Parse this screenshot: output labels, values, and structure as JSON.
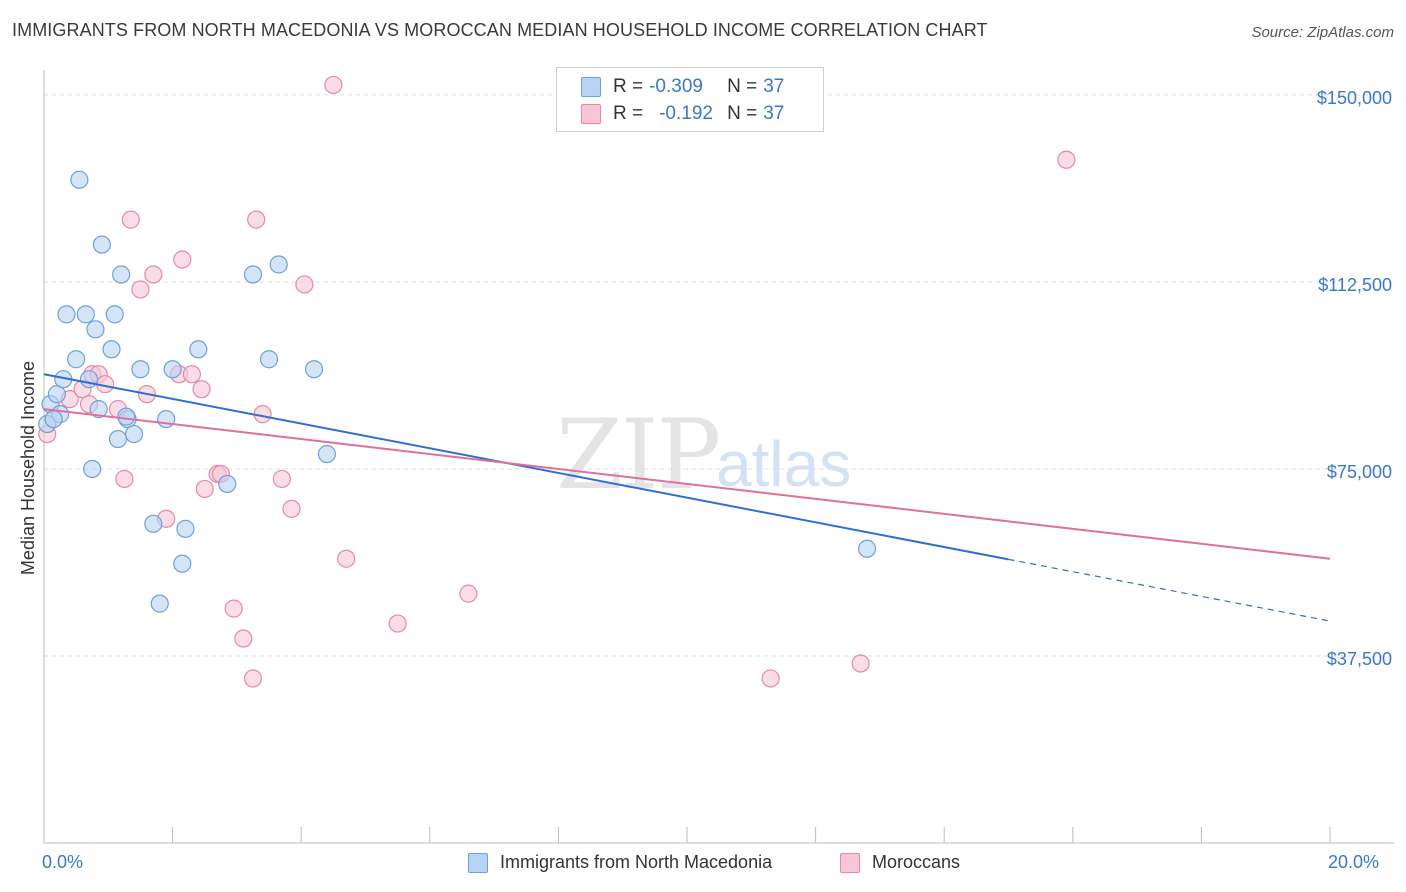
{
  "title": "IMMIGRANTS FROM NORTH MACEDONIA VS MOROCCAN MEDIAN HOUSEHOLD INCOME CORRELATION CHART",
  "source": "Source: ZipAtlas.com",
  "watermark": {
    "zip": "ZIP",
    "atlas": "atlas"
  },
  "legend_top": {
    "rows": [
      {
        "r_label": "R =",
        "r_value": "-0.309",
        "n_label": "N =",
        "n_value": "37"
      },
      {
        "r_label": "R =",
        "r_value": "-0.192",
        "n_label": "N =",
        "n_value": "37"
      }
    ]
  },
  "colors": {
    "blue_fill": "#b8d3f3",
    "blue_stroke": "#6fa0dc",
    "blue_line": "#2f6fd0",
    "pink_fill": "#f8c6d6",
    "pink_stroke": "#e58aa9",
    "pink_line": "#e0709a",
    "tick_text": "#3b78c9",
    "grid": "#dcdcdc"
  },
  "chart_data": {
    "type": "scatter",
    "title": "IMMIGRANTS FROM NORTH MACEDONIA VS MOROCCAN MEDIAN HOUSEHOLD INCOME CORRELATION CHART",
    "xlabel": "",
    "ylabel": "Median Household Income",
    "xlim": [
      0,
      20
    ],
    "ylim": [
      0,
      155000
    ],
    "x_tick_labels": [
      "0.0%",
      "20.0%"
    ],
    "y_ticks": [
      37500,
      75000,
      112500,
      150000
    ],
    "y_tick_labels": [
      "$37,500",
      "$75,000",
      "$112,500",
      "$150,000"
    ],
    "series": [
      {
        "name": "Immigrants from North Macedonia",
        "points": [
          {
            "x": 0.05,
            "y": 84000
          },
          {
            "x": 0.1,
            "y": 88000
          },
          {
            "x": 0.2,
            "y": 90000
          },
          {
            "x": 0.25,
            "y": 86000
          },
          {
            "x": 0.3,
            "y": 93000
          },
          {
            "x": 0.35,
            "y": 106000
          },
          {
            "x": 0.5,
            "y": 97000
          },
          {
            "x": 0.55,
            "y": 133000
          },
          {
            "x": 0.65,
            "y": 106000
          },
          {
            "x": 0.7,
            "y": 93000
          },
          {
            "x": 0.75,
            "y": 75000
          },
          {
            "x": 0.8,
            "y": 103000
          },
          {
            "x": 0.85,
            "y": 87000
          },
          {
            "x": 0.9,
            "y": 120000
          },
          {
            "x": 1.05,
            "y": 99000
          },
          {
            "x": 1.1,
            "y": 106000
          },
          {
            "x": 1.15,
            "y": 81000
          },
          {
            "x": 1.2,
            "y": 114000
          },
          {
            "x": 1.3,
            "y": 85000
          },
          {
            "x": 1.4,
            "y": 82000
          },
          {
            "x": 1.5,
            "y": 95000
          },
          {
            "x": 1.7,
            "y": 64000
          },
          {
            "x": 1.8,
            "y": 48000
          },
          {
            "x": 1.9,
            "y": 85000
          },
          {
            "x": 2.0,
            "y": 95000
          },
          {
            "x": 2.15,
            "y": 56000
          },
          {
            "x": 2.2,
            "y": 63000
          },
          {
            "x": 2.4,
            "y": 99000
          },
          {
            "x": 2.85,
            "y": 72000
          },
          {
            "x": 3.25,
            "y": 114000
          },
          {
            "x": 3.5,
            "y": 97000
          },
          {
            "x": 3.65,
            "y": 116000
          },
          {
            "x": 4.2,
            "y": 95000
          },
          {
            "x": 4.4,
            "y": 78000
          },
          {
            "x": 12.8,
            "y": 59000
          },
          {
            "x": 0.15,
            "y": 85000
          },
          {
            "x": 1.28,
            "y": 85500
          }
        ]
      },
      {
        "name": "Moroccans",
        "points": [
          {
            "x": 0.05,
            "y": 82000
          },
          {
            "x": 0.15,
            "y": 85000
          },
          {
            "x": 0.4,
            "y": 89000
          },
          {
            "x": 0.6,
            "y": 91000
          },
          {
            "x": 0.7,
            "y": 88000
          },
          {
            "x": 0.75,
            "y": 94000
          },
          {
            "x": 0.85,
            "y": 94000
          },
          {
            "x": 0.95,
            "y": 92000
          },
          {
            "x": 1.15,
            "y": 87000
          },
          {
            "x": 1.25,
            "y": 73000
          },
          {
            "x": 1.35,
            "y": 125000
          },
          {
            "x": 1.5,
            "y": 111000
          },
          {
            "x": 1.6,
            "y": 90000
          },
          {
            "x": 1.7,
            "y": 114000
          },
          {
            "x": 1.9,
            "y": 65000
          },
          {
            "x": 2.1,
            "y": 94000
          },
          {
            "x": 2.15,
            "y": 117000
          },
          {
            "x": 2.3,
            "y": 94000
          },
          {
            "x": 2.45,
            "y": 91000
          },
          {
            "x": 2.5,
            "y": 71000
          },
          {
            "x": 2.7,
            "y": 74000
          },
          {
            "x": 2.75,
            "y": 74000
          },
          {
            "x": 2.95,
            "y": 47000
          },
          {
            "x": 3.1,
            "y": 41000
          },
          {
            "x": 3.25,
            "y": 33000
          },
          {
            "x": 3.3,
            "y": 125000
          },
          {
            "x": 3.4,
            "y": 86000
          },
          {
            "x": 3.7,
            "y": 73000
          },
          {
            "x": 3.85,
            "y": 67000
          },
          {
            "x": 4.05,
            "y": 112000
          },
          {
            "x": 4.5,
            "y": 152000
          },
          {
            "x": 4.7,
            "y": 57000
          },
          {
            "x": 5.5,
            "y": 44000
          },
          {
            "x": 6.6,
            "y": 50000
          },
          {
            "x": 11.3,
            "y": 33000
          },
          {
            "x": 12.7,
            "y": 36000
          },
          {
            "x": 15.9,
            "y": 137000
          }
        ]
      }
    ],
    "trendlines": [
      {
        "series": "Immigrants from North Macedonia",
        "x_start": 0,
        "y_start": 94000,
        "x_solid_end": 15.0,
        "x_end": 20.0,
        "y_end": 44500,
        "dashed_extension": true
      },
      {
        "series": "Moroccans",
        "x_start": 0,
        "y_start": 87000,
        "x_end": 20.0,
        "y_end": 57000,
        "dashed_extension": false
      }
    ],
    "legend": [
      "Immigrants from North Macedonia",
      "Moroccans"
    ]
  }
}
